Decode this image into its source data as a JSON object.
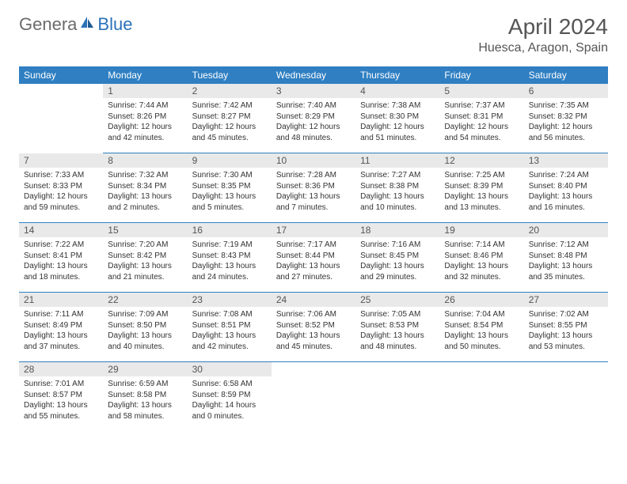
{
  "logo": {
    "part1": "Genera",
    "part2": "Blue"
  },
  "title": "April 2024",
  "location": "Huesca, Aragon, Spain",
  "weekdays": [
    "Sunday",
    "Monday",
    "Tuesday",
    "Wednesday",
    "Thursday",
    "Friday",
    "Saturday"
  ],
  "colors": {
    "header_bg": "#2f7fc2",
    "header_fg": "#ffffff",
    "daynum_bg": "#e9e9e9",
    "border": "#2f7fc2",
    "logo_gray": "#6b6b6b",
    "logo_blue": "#2a71b8"
  },
  "weeks": [
    [
      null,
      {
        "n": "1",
        "sr": "7:44 AM",
        "ss": "8:26 PM",
        "dl": "12 hours and 42 minutes."
      },
      {
        "n": "2",
        "sr": "7:42 AM",
        "ss": "8:27 PM",
        "dl": "12 hours and 45 minutes."
      },
      {
        "n": "3",
        "sr": "7:40 AM",
        "ss": "8:29 PM",
        "dl": "12 hours and 48 minutes."
      },
      {
        "n": "4",
        "sr": "7:38 AM",
        "ss": "8:30 PM",
        "dl": "12 hours and 51 minutes."
      },
      {
        "n": "5",
        "sr": "7:37 AM",
        "ss": "8:31 PM",
        "dl": "12 hours and 54 minutes."
      },
      {
        "n": "6",
        "sr": "7:35 AM",
        "ss": "8:32 PM",
        "dl": "12 hours and 56 minutes."
      }
    ],
    [
      {
        "n": "7",
        "sr": "7:33 AM",
        "ss": "8:33 PM",
        "dl": "12 hours and 59 minutes."
      },
      {
        "n": "8",
        "sr": "7:32 AM",
        "ss": "8:34 PM",
        "dl": "13 hours and 2 minutes."
      },
      {
        "n": "9",
        "sr": "7:30 AM",
        "ss": "8:35 PM",
        "dl": "13 hours and 5 minutes."
      },
      {
        "n": "10",
        "sr": "7:28 AM",
        "ss": "8:36 PM",
        "dl": "13 hours and 7 minutes."
      },
      {
        "n": "11",
        "sr": "7:27 AM",
        "ss": "8:38 PM",
        "dl": "13 hours and 10 minutes."
      },
      {
        "n": "12",
        "sr": "7:25 AM",
        "ss": "8:39 PM",
        "dl": "13 hours and 13 minutes."
      },
      {
        "n": "13",
        "sr": "7:24 AM",
        "ss": "8:40 PM",
        "dl": "13 hours and 16 minutes."
      }
    ],
    [
      {
        "n": "14",
        "sr": "7:22 AM",
        "ss": "8:41 PM",
        "dl": "13 hours and 18 minutes."
      },
      {
        "n": "15",
        "sr": "7:20 AM",
        "ss": "8:42 PM",
        "dl": "13 hours and 21 minutes."
      },
      {
        "n": "16",
        "sr": "7:19 AM",
        "ss": "8:43 PM",
        "dl": "13 hours and 24 minutes."
      },
      {
        "n": "17",
        "sr": "7:17 AM",
        "ss": "8:44 PM",
        "dl": "13 hours and 27 minutes."
      },
      {
        "n": "18",
        "sr": "7:16 AM",
        "ss": "8:45 PM",
        "dl": "13 hours and 29 minutes."
      },
      {
        "n": "19",
        "sr": "7:14 AM",
        "ss": "8:46 PM",
        "dl": "13 hours and 32 minutes."
      },
      {
        "n": "20",
        "sr": "7:12 AM",
        "ss": "8:48 PM",
        "dl": "13 hours and 35 minutes."
      }
    ],
    [
      {
        "n": "21",
        "sr": "7:11 AM",
        "ss": "8:49 PM",
        "dl": "13 hours and 37 minutes."
      },
      {
        "n": "22",
        "sr": "7:09 AM",
        "ss": "8:50 PM",
        "dl": "13 hours and 40 minutes."
      },
      {
        "n": "23",
        "sr": "7:08 AM",
        "ss": "8:51 PM",
        "dl": "13 hours and 42 minutes."
      },
      {
        "n": "24",
        "sr": "7:06 AM",
        "ss": "8:52 PM",
        "dl": "13 hours and 45 minutes."
      },
      {
        "n": "25",
        "sr": "7:05 AM",
        "ss": "8:53 PM",
        "dl": "13 hours and 48 minutes."
      },
      {
        "n": "26",
        "sr": "7:04 AM",
        "ss": "8:54 PM",
        "dl": "13 hours and 50 minutes."
      },
      {
        "n": "27",
        "sr": "7:02 AM",
        "ss": "8:55 PM",
        "dl": "13 hours and 53 minutes."
      }
    ],
    [
      {
        "n": "28",
        "sr": "7:01 AM",
        "ss": "8:57 PM",
        "dl": "13 hours and 55 minutes."
      },
      {
        "n": "29",
        "sr": "6:59 AM",
        "ss": "8:58 PM",
        "dl": "13 hours and 58 minutes."
      },
      {
        "n": "30",
        "sr": "6:58 AM",
        "ss": "8:59 PM",
        "dl": "14 hours and 0 minutes."
      },
      null,
      null,
      null,
      null
    ]
  ],
  "labels": {
    "sunrise": "Sunrise: ",
    "sunset": "Sunset: ",
    "daylight": "Daylight: "
  }
}
